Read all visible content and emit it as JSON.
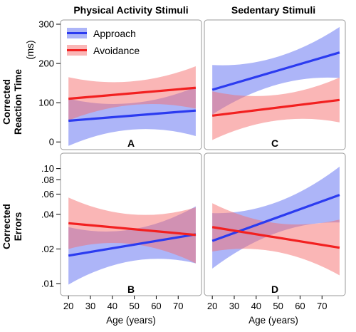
{
  "colors": {
    "approach": "#2b3bf0",
    "avoidance": "#f22020",
    "approach_band": "#5c6cf2",
    "avoidance_band": "#f56d6d",
    "frame": "#9a9a9a"
  },
  "legend": {
    "approach": "Approach",
    "avoidance": "Avoidance",
    "placement": "top-left"
  },
  "columns": [
    "Physical Activity Stimuli",
    "Sedentary Stimuli"
  ],
  "rows": [
    {
      "ylabel_line1": "Corrected",
      "ylabel_line2": "Reaction Time",
      "unit": "(ms)"
    },
    {
      "ylabel_line1": "Corrected",
      "ylabel_line2": "Errors",
      "unit": ""
    }
  ],
  "xlabel": "Age (years)",
  "chart_data": [
    {
      "type": "line",
      "panel": "A",
      "x": [
        20,
        78
      ],
      "xlim": [
        18,
        79
      ],
      "xticks": [
        "20",
        "30",
        "40",
        "50",
        "60",
        "70"
      ],
      "yscale": "linear",
      "ylim": [
        -5,
        300
      ],
      "yticks": [
        "0",
        "100",
        "200",
        "300"
      ],
      "series": [
        {
          "name": "Approach",
          "y": [
            54,
            80
          ],
          "lower": [
            -10,
            15
          ],
          "upper": [
            110,
            140
          ]
        },
        {
          "name": "Avoidance",
          "y": [
            110,
            138
          ],
          "lower": [
            55,
            85
          ],
          "upper": [
            165,
            193
          ]
        }
      ]
    },
    {
      "type": "line",
      "panel": "C",
      "x": [
        20,
        78
      ],
      "xlim": [
        18,
        79
      ],
      "xticks": [
        "20",
        "30",
        "40",
        "50",
        "60",
        "70"
      ],
      "yscale": "linear",
      "ylim": [
        -5,
        300
      ],
      "yticks": [
        "0",
        "100",
        "200",
        "300"
      ],
      "series": [
        {
          "name": "Approach",
          "y": [
            133,
            228
          ],
          "lower": [
            70,
            163
          ],
          "upper": [
            196,
            293
          ]
        },
        {
          "name": "Avoidance",
          "y": [
            67,
            107
          ],
          "lower": [
            5,
            50
          ],
          "upper": [
            129,
            164
          ]
        }
      ]
    },
    {
      "type": "line",
      "panel": "B",
      "x": [
        20,
        78
      ],
      "xlim": [
        18,
        79
      ],
      "xticks": [
        "20",
        "30",
        "40",
        "50",
        "60",
        "70"
      ],
      "yscale": "log",
      "ylim": [
        0.0088,
        0.125
      ],
      "yticks": [
        ".01",
        ".02",
        ".04",
        ".06",
        ".08",
        ".10"
      ],
      "series": [
        {
          "name": "Approach",
          "y": [
            0.0175,
            0.0268
          ],
          "lower": [
            0.0098,
            0.015
          ],
          "upper": [
            0.031,
            0.047
          ]
        },
        {
          "name": "Avoidance",
          "y": [
            0.0335,
            0.0265
          ],
          "lower": [
            0.02,
            0.015
          ],
          "upper": [
            0.056,
            0.046
          ]
        }
      ]
    },
    {
      "type": "line",
      "panel": "D",
      "x": [
        20,
        78
      ],
      "xlim": [
        18,
        79
      ],
      "xticks": [
        "20",
        "30",
        "40",
        "50",
        "60",
        "70"
      ],
      "yscale": "log",
      "ylim": [
        0.0088,
        0.125
      ],
      "yticks": [
        ".01",
        ".02",
        ".04",
        ".06",
        ".08",
        ".10"
      ],
      "series": [
        {
          "name": "Approach",
          "y": [
            0.0235,
            0.059
          ],
          "lower": [
            0.0135,
            0.034
          ],
          "upper": [
            0.041,
            0.104
          ]
        },
        {
          "name": "Avoidance",
          "y": [
            0.031,
            0.0205
          ],
          "lower": [
            0.019,
            0.0118
          ],
          "upper": [
            0.05,
            0.036
          ]
        }
      ]
    }
  ]
}
